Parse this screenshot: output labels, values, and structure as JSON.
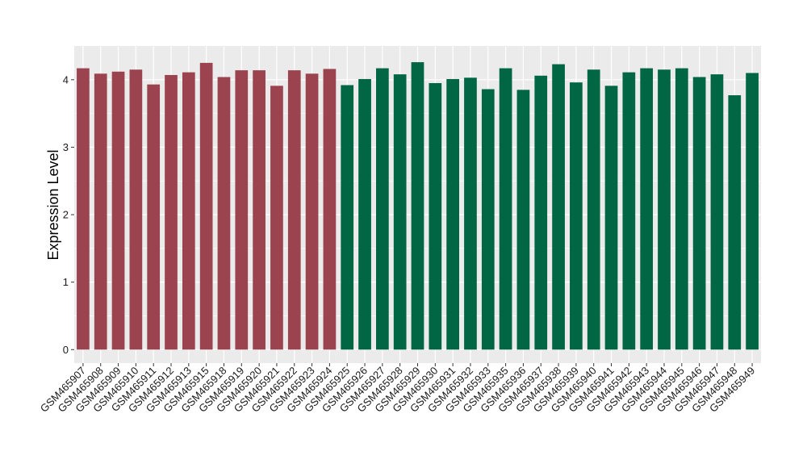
{
  "chart_data": {
    "type": "bar",
    "title": "",
    "xlabel": "",
    "ylabel": "Expression Level",
    "ylim": [
      -0.2,
      4.5
    ],
    "yticks": [
      0,
      1,
      2,
      3,
      4
    ],
    "grid": true,
    "legend": "none",
    "categories": [
      "GSM465907",
      "GSM465908",
      "GSM465909",
      "GSM465910",
      "GSM465911",
      "GSM465912",
      "GSM465913",
      "GSM465915",
      "GSM465918",
      "GSM465919",
      "GSM465920",
      "GSM465921",
      "GSM465922",
      "GSM465923",
      "GSM465924",
      "GSM465925",
      "GSM465926",
      "GSM465927",
      "GSM465928",
      "GSM465929",
      "GSM465930",
      "GSM465931",
      "GSM465932",
      "GSM465933",
      "GSM465935",
      "GSM465936",
      "GSM465937",
      "GSM465938",
      "GSM465939",
      "GSM465940",
      "GSM465941",
      "GSM465942",
      "GSM465943",
      "GSM465944",
      "GSM465945",
      "GSM465946",
      "GSM465947",
      "GSM465948",
      "GSM465949"
    ],
    "values": [
      4.17,
      4.09,
      4.12,
      4.15,
      3.93,
      4.07,
      4.11,
      4.25,
      4.04,
      4.14,
      4.14,
      3.91,
      4.14,
      4.09,
      4.16,
      3.92,
      4.01,
      4.17,
      4.08,
      4.26,
      3.95,
      4.01,
      4.03,
      3.86,
      4.17,
      3.85,
      4.06,
      4.23,
      3.96,
      4.15,
      3.91,
      4.11,
      4.17,
      4.15,
      4.17,
      4.04,
      4.08,
      3.77,
      4.1
    ],
    "group_sizes": [
      15,
      24
    ],
    "colors": [
      "#9b4450",
      "#006644"
    ],
    "panel_background": "#ebebeb",
    "grid_color": "#ffffff"
  }
}
